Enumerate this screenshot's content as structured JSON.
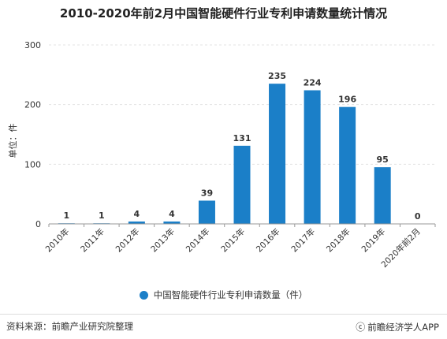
{
  "page": {
    "title": "2010-2020年前2月中国智能硬件行业专利申请数量统计情况",
    "source": "资料来源：前瞻产业研究院整理",
    "brand": "前瞻经济学人APP",
    "brand_icon": "copyright-circle-icon"
  },
  "colors": {
    "bar": "#1b7fc8",
    "grid": "#e3e3e3",
    "axis": "#999999",
    "text": "#333333"
  },
  "chart_data": {
    "type": "bar",
    "title": "2010-2020年前2月中国智能硬件行业专利申请数量统计情况",
    "xlabel": "",
    "ylabel": "单位：件",
    "categories": [
      "2010年",
      "2011年",
      "2012年",
      "2013年",
      "2014年",
      "2015年",
      "2016年",
      "2017年",
      "2018年",
      "2019年",
      "2020年前2月"
    ],
    "series": [
      {
        "name": "中国智能硬件行业专利申请数量（件）",
        "values": [
          1,
          1,
          4,
          4,
          39,
          131,
          235,
          224,
          196,
          95,
          0
        ]
      }
    ],
    "ylim": [
      0,
      300
    ],
    "yticks": [
      0,
      100,
      200,
      300
    ],
    "grid": "horizontal-dashed",
    "legend": "bottom-center",
    "data_labels": true
  }
}
